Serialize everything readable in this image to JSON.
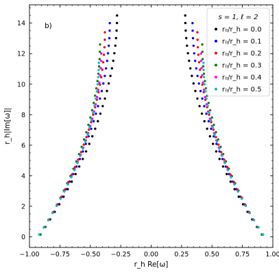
{
  "chart_data": {
    "type": "scatter",
    "panel_label": "b)",
    "xlabel": "r_h Re[ω]",
    "ylabel": "r_h|Im[ω]|",
    "xlim": [
      -1.0,
      1.0
    ],
    "ylim": [
      -0.7,
      15.2
    ],
    "xticks": [
      -1.0,
      -0.75,
      -0.5,
      -0.25,
      0.0,
      0.25,
      0.5,
      0.75,
      1.0
    ],
    "xtick_labels": [
      "−1.00",
      "−0.75",
      "−0.50",
      "−0.25",
      "0.00",
      "0.25",
      "0.50",
      "0.75",
      "1.00"
    ],
    "yticks": [
      0,
      2,
      4,
      6,
      8,
      10,
      12,
      14
    ],
    "ytick_labels": [
      "0",
      "2",
      "4",
      "6",
      "8",
      "10",
      "12",
      "14"
    ],
    "legend": {
      "title": "s = 1, ℓ = 2",
      "placement": "top-right",
      "entries": [
        "r₀/r_h = 0.0",
        "r₀/r_h = 0.1",
        "r₀/r_h = 0.2",
        "r₀/r_h = 0.3",
        "r₀/r_h = 0.4",
        "r₀/r_h = 0.5"
      ]
    },
    "series": [
      {
        "name": "r₀/r_h = 0.0",
        "color": "#000000",
        "n": 30,
        "x_start": 0.91,
        "x_end": 0.28,
        "y_end": 14.5
      },
      {
        "name": "r₀/r_h = 0.1",
        "color": "#0000ff",
        "n": 29,
        "x_start": 0.91,
        "x_end": 0.34,
        "y_end": 14.0
      },
      {
        "name": "r₀/r_h = 0.2",
        "color": "#ff0000",
        "n": 28,
        "x_start": 0.91,
        "x_end": 0.38,
        "y_end": 13.4
      },
      {
        "name": "r₀/r_h = 0.3",
        "color": "#008000",
        "n": 27,
        "x_start": 0.91,
        "x_end": 0.42,
        "y_end": 12.6
      },
      {
        "name": "r₀/r_h = 0.4",
        "color": "#ff00ff",
        "n": 26,
        "x_start": 0.92,
        "x_end": 0.41,
        "y_end": 12.0
      },
      {
        "name": "r₀/r_h = 0.5",
        "color": "#00bfbf",
        "n": 25,
        "x_start": 0.92,
        "x_end": 0.43,
        "y_end": 11.4
      }
    ],
    "y_start": 0.15,
    "symmetric_about_zero": true,
    "grid": false
  }
}
